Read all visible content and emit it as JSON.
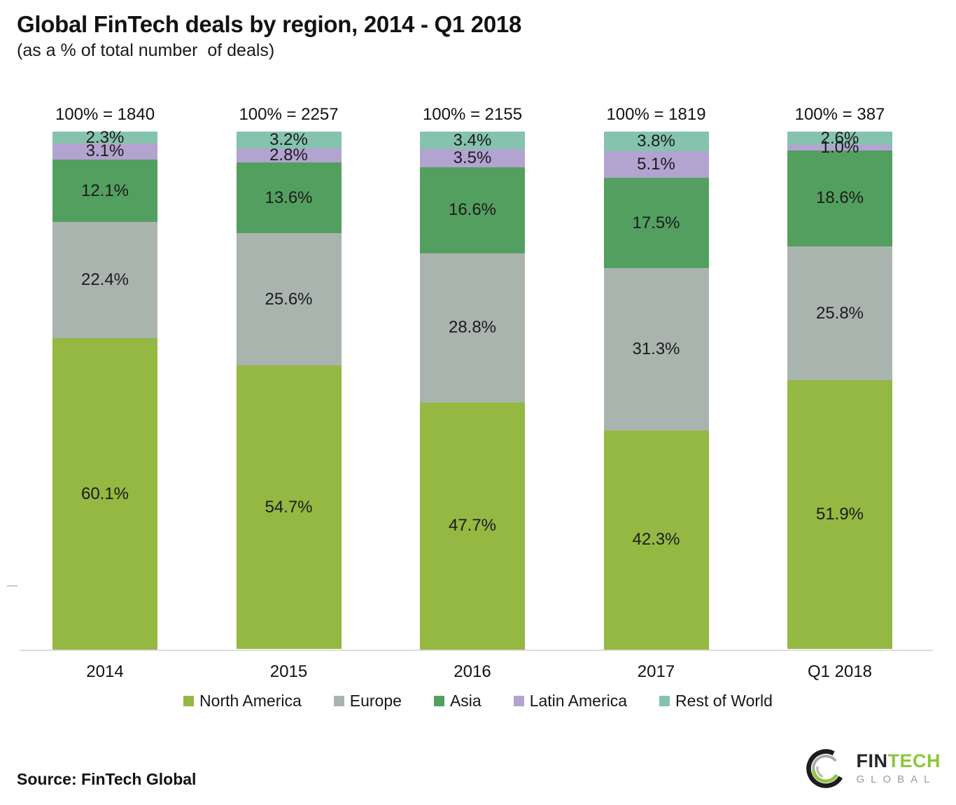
{
  "header": {
    "title": "Global FinTech deals by region, 2014 - Q1 2018",
    "subtitle": "(as a % of total number  of deals)"
  },
  "chart_data": {
    "type": "bar",
    "stacked": true,
    "orientation": "vertical",
    "categories": [
      "2014",
      "2015",
      "2016",
      "2017",
      "Q1 2018"
    ],
    "totals_label_prefix": "100% = ",
    "totals": [
      1840,
      2257,
      2155,
      1819,
      387
    ],
    "series": [
      {
        "name": "North America",
        "color": "#94b842",
        "values": [
          60.1,
          54.7,
          47.7,
          42.3,
          51.9
        ]
      },
      {
        "name": "Europe",
        "color": "#aab4af",
        "values": [
          22.4,
          25.6,
          28.8,
          31.3,
          25.8
        ]
      },
      {
        "name": "Asia",
        "color": "#539f5f",
        "values": [
          12.1,
          13.6,
          16.6,
          17.5,
          18.6
        ]
      },
      {
        "name": "Latin America",
        "color": "#b3a3d1",
        "values": [
          3.1,
          2.8,
          3.5,
          5.1,
          1.0
        ]
      },
      {
        "name": "Rest of World",
        "color": "#85c3ae",
        "values": [
          2.3,
          3.2,
          3.4,
          3.8,
          2.6
        ]
      }
    ],
    "value_suffix": "%",
    "ylim": [
      0,
      100
    ],
    "grid": false,
    "legend_position": "bottom"
  },
  "source": {
    "label": "Source: FinTech Global"
  },
  "logo": {
    "fin": "FIN",
    "tech": "TECH",
    "global": "GLOBAL",
    "green": "#8dc63f",
    "dark": "#1d1d1b",
    "gray": "#a7a7a7"
  }
}
